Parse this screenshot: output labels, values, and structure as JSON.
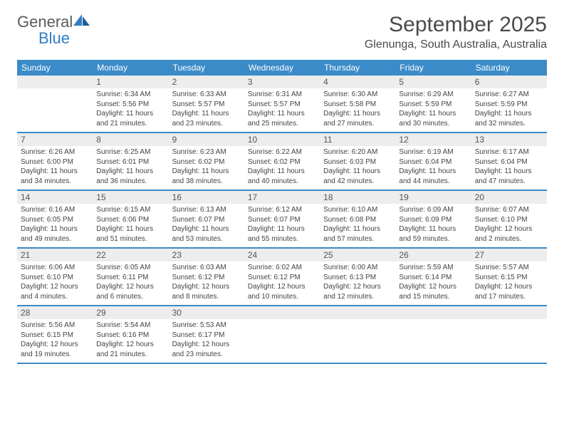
{
  "header": {
    "logo_general": "General",
    "logo_blue": "Blue",
    "month_title": "September 2025",
    "location": "Glenunga, South Australia, Australia"
  },
  "colors": {
    "header_bg": "#3b8bc8",
    "header_text": "#ffffff",
    "shaded_bg": "#ededed",
    "text": "#444444",
    "title_text": "#4a4a4a",
    "logo_gray": "#5a5a5a",
    "logo_blue": "#2f7fc2"
  },
  "weekdays": [
    "Sunday",
    "Monday",
    "Tuesday",
    "Wednesday",
    "Thursday",
    "Friday",
    "Saturday"
  ],
  "weeks": [
    [
      {
        "num": "",
        "lines": [],
        "shaded": false
      },
      {
        "num": "1",
        "lines": [
          "Sunrise: 6:34 AM",
          "Sunset: 5:56 PM",
          "Daylight: 11 hours",
          "and 21 minutes."
        ],
        "shaded": false
      },
      {
        "num": "2",
        "lines": [
          "Sunrise: 6:33 AM",
          "Sunset: 5:57 PM",
          "Daylight: 11 hours",
          "and 23 minutes."
        ],
        "shaded": false
      },
      {
        "num": "3",
        "lines": [
          "Sunrise: 6:31 AM",
          "Sunset: 5:57 PM",
          "Daylight: 11 hours",
          "and 25 minutes."
        ],
        "shaded": false
      },
      {
        "num": "4",
        "lines": [
          "Sunrise: 6:30 AM",
          "Sunset: 5:58 PM",
          "Daylight: 11 hours",
          "and 27 minutes."
        ],
        "shaded": false
      },
      {
        "num": "5",
        "lines": [
          "Sunrise: 6:29 AM",
          "Sunset: 5:59 PM",
          "Daylight: 11 hours",
          "and 30 minutes."
        ],
        "shaded": false
      },
      {
        "num": "6",
        "lines": [
          "Sunrise: 6:27 AM",
          "Sunset: 5:59 PM",
          "Daylight: 11 hours",
          "and 32 minutes."
        ],
        "shaded": false
      }
    ],
    [
      {
        "num": "7",
        "lines": [
          "Sunrise: 6:26 AM",
          "Sunset: 6:00 PM",
          "Daylight: 11 hours",
          "and 34 minutes."
        ],
        "shaded": false
      },
      {
        "num": "8",
        "lines": [
          "Sunrise: 6:25 AM",
          "Sunset: 6:01 PM",
          "Daylight: 11 hours",
          "and 36 minutes."
        ],
        "shaded": false
      },
      {
        "num": "9",
        "lines": [
          "Sunrise: 6:23 AM",
          "Sunset: 6:02 PM",
          "Daylight: 11 hours",
          "and 38 minutes."
        ],
        "shaded": false
      },
      {
        "num": "10",
        "lines": [
          "Sunrise: 6:22 AM",
          "Sunset: 6:02 PM",
          "Daylight: 11 hours",
          "and 40 minutes."
        ],
        "shaded": false
      },
      {
        "num": "11",
        "lines": [
          "Sunrise: 6:20 AM",
          "Sunset: 6:03 PM",
          "Daylight: 11 hours",
          "and 42 minutes."
        ],
        "shaded": false
      },
      {
        "num": "12",
        "lines": [
          "Sunrise: 6:19 AM",
          "Sunset: 6:04 PM",
          "Daylight: 11 hours",
          "and 44 minutes."
        ],
        "shaded": false
      },
      {
        "num": "13",
        "lines": [
          "Sunrise: 6:17 AM",
          "Sunset: 6:04 PM",
          "Daylight: 11 hours",
          "and 47 minutes."
        ],
        "shaded": false
      }
    ],
    [
      {
        "num": "14",
        "lines": [
          "Sunrise: 6:16 AM",
          "Sunset: 6:05 PM",
          "Daylight: 11 hours",
          "and 49 minutes."
        ],
        "shaded": false
      },
      {
        "num": "15",
        "lines": [
          "Sunrise: 6:15 AM",
          "Sunset: 6:06 PM",
          "Daylight: 11 hours",
          "and 51 minutes."
        ],
        "shaded": false
      },
      {
        "num": "16",
        "lines": [
          "Sunrise: 6:13 AM",
          "Sunset: 6:07 PM",
          "Daylight: 11 hours",
          "and 53 minutes."
        ],
        "shaded": false
      },
      {
        "num": "17",
        "lines": [
          "Sunrise: 6:12 AM",
          "Sunset: 6:07 PM",
          "Daylight: 11 hours",
          "and 55 minutes."
        ],
        "shaded": false
      },
      {
        "num": "18",
        "lines": [
          "Sunrise: 6:10 AM",
          "Sunset: 6:08 PM",
          "Daylight: 11 hours",
          "and 57 minutes."
        ],
        "shaded": false
      },
      {
        "num": "19",
        "lines": [
          "Sunrise: 6:09 AM",
          "Sunset: 6:09 PM",
          "Daylight: 11 hours",
          "and 59 minutes."
        ],
        "shaded": false
      },
      {
        "num": "20",
        "lines": [
          "Sunrise: 6:07 AM",
          "Sunset: 6:10 PM",
          "Daylight: 12 hours",
          "and 2 minutes."
        ],
        "shaded": false
      }
    ],
    [
      {
        "num": "21",
        "lines": [
          "Sunrise: 6:06 AM",
          "Sunset: 6:10 PM",
          "Daylight: 12 hours",
          "and 4 minutes."
        ],
        "shaded": false
      },
      {
        "num": "22",
        "lines": [
          "Sunrise: 6:05 AM",
          "Sunset: 6:11 PM",
          "Daylight: 12 hours",
          "and 6 minutes."
        ],
        "shaded": false
      },
      {
        "num": "23",
        "lines": [
          "Sunrise: 6:03 AM",
          "Sunset: 6:12 PM",
          "Daylight: 12 hours",
          "and 8 minutes."
        ],
        "shaded": false
      },
      {
        "num": "24",
        "lines": [
          "Sunrise: 6:02 AM",
          "Sunset: 6:12 PM",
          "Daylight: 12 hours",
          "and 10 minutes."
        ],
        "shaded": false
      },
      {
        "num": "25",
        "lines": [
          "Sunrise: 6:00 AM",
          "Sunset: 6:13 PM",
          "Daylight: 12 hours",
          "and 12 minutes."
        ],
        "shaded": false
      },
      {
        "num": "26",
        "lines": [
          "Sunrise: 5:59 AM",
          "Sunset: 6:14 PM",
          "Daylight: 12 hours",
          "and 15 minutes."
        ],
        "shaded": false
      },
      {
        "num": "27",
        "lines": [
          "Sunrise: 5:57 AM",
          "Sunset: 6:15 PM",
          "Daylight: 12 hours",
          "and 17 minutes."
        ],
        "shaded": false
      }
    ],
    [
      {
        "num": "28",
        "lines": [
          "Sunrise: 5:56 AM",
          "Sunset: 6:15 PM",
          "Daylight: 12 hours",
          "and 19 minutes."
        ],
        "shaded": false
      },
      {
        "num": "29",
        "lines": [
          "Sunrise: 5:54 AM",
          "Sunset: 6:16 PM",
          "Daylight: 12 hours",
          "and 21 minutes."
        ],
        "shaded": false
      },
      {
        "num": "30",
        "lines": [
          "Sunrise: 5:53 AM",
          "Sunset: 6:17 PM",
          "Daylight: 12 hours",
          "and 23 minutes."
        ],
        "shaded": false
      },
      {
        "num": "",
        "lines": [],
        "shaded": false
      },
      {
        "num": "",
        "lines": [],
        "shaded": false
      },
      {
        "num": "",
        "lines": [],
        "shaded": false
      },
      {
        "num": "",
        "lines": [],
        "shaded": false
      }
    ]
  ]
}
